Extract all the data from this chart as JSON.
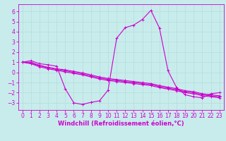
{
  "xlabel": "Windchill (Refroidissement éolien,°C)",
  "background_color": "#c8ecec",
  "line_color": "#cc00cc",
  "grid_color": "#b8dede",
  "xlim": [
    -0.5,
    23.5
  ],
  "ylim": [
    -3.7,
    6.7
  ],
  "yticks": [
    -3,
    -2,
    -1,
    0,
    1,
    2,
    3,
    4,
    5,
    6
  ],
  "xticks": [
    0,
    1,
    2,
    3,
    4,
    5,
    6,
    7,
    8,
    9,
    10,
    11,
    12,
    13,
    14,
    15,
    16,
    17,
    18,
    19,
    20,
    21,
    22,
    23
  ],
  "series": [
    {
      "x": [
        0,
        1,
        2,
        3,
        4,
        5,
        6,
        7,
        8,
        9,
        10,
        11,
        12,
        13,
        14,
        15,
        16,
        17,
        18,
        19,
        20,
        21,
        22,
        23
      ],
      "y": [
        1.0,
        1.15,
        0.85,
        0.75,
        0.6,
        -1.6,
        -3.0,
        -3.15,
        -2.95,
        -2.8,
        -1.75,
        3.35,
        4.4,
        4.65,
        5.2,
        6.1,
        4.35,
        0.15,
        -1.5,
        -2.2,
        -2.4,
        -2.5,
        -2.1,
        -2.0
      ]
    },
    {
      "x": [
        0,
        1,
        2,
        3,
        4,
        5,
        6,
        7,
        8,
        9,
        10,
        11,
        12,
        13,
        14,
        15,
        16,
        17,
        18,
        19,
        20,
        21,
        22,
        23
      ],
      "y": [
        1.0,
        1.0,
        0.7,
        0.5,
        0.35,
        0.25,
        0.1,
        -0.05,
        -0.25,
        -0.45,
        -0.6,
        -0.7,
        -0.8,
        -0.9,
        -1.0,
        -1.1,
        -1.3,
        -1.45,
        -1.6,
        -1.8,
        -1.9,
        -2.1,
        -2.2,
        -2.3
      ]
    },
    {
      "x": [
        0,
        1,
        2,
        3,
        4,
        5,
        6,
        7,
        8,
        9,
        10,
        11,
        12,
        13,
        14,
        15,
        16,
        17,
        18,
        19,
        20,
        21,
        22,
        23
      ],
      "y": [
        1.0,
        0.9,
        0.65,
        0.45,
        0.3,
        0.15,
        0.0,
        -0.15,
        -0.35,
        -0.55,
        -0.7,
        -0.8,
        -0.9,
        -1.0,
        -1.1,
        -1.2,
        -1.4,
        -1.55,
        -1.7,
        -1.9,
        -2.0,
        -2.2,
        -2.3,
        -2.4
      ]
    },
    {
      "x": [
        0,
        1,
        2,
        3,
        4,
        5,
        6,
        7,
        8,
        9,
        10,
        11,
        12,
        13,
        14,
        15,
        16,
        17,
        18,
        19,
        20,
        21,
        22,
        23
      ],
      "y": [
        1.0,
        0.85,
        0.55,
        0.35,
        0.2,
        0.05,
        -0.1,
        -0.25,
        -0.45,
        -0.65,
        -0.8,
        -0.9,
        -1.0,
        -1.1,
        -1.2,
        -1.3,
        -1.5,
        -1.65,
        -1.8,
        -2.0,
        -2.1,
        -2.3,
        -2.4,
        -2.5
      ]
    }
  ],
  "marker": "+",
  "markersize": 3,
  "linewidth": 0.8,
  "xlabel_fontsize": 6,
  "tick_fontsize": 5.5
}
